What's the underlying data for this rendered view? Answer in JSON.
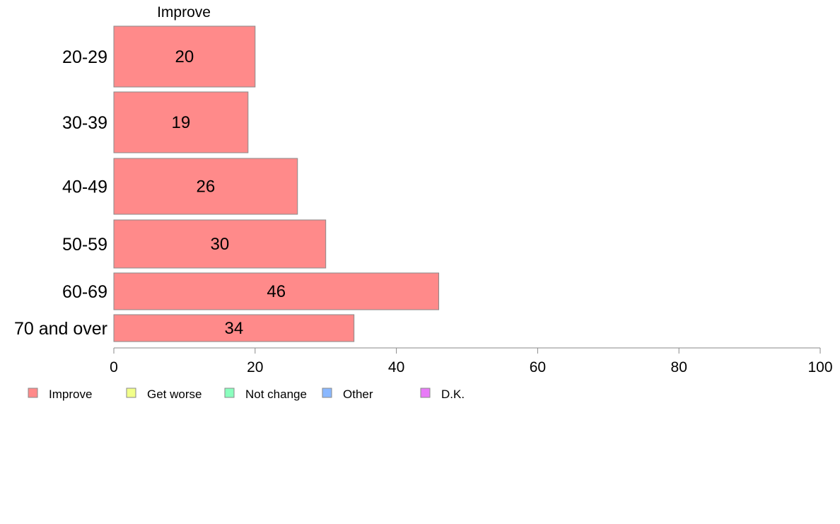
{
  "chart_data": {
    "type": "bar",
    "orientation": "horizontal",
    "title": "",
    "xlabel": "",
    "ylabel": "",
    "xlim": [
      0,
      100
    ],
    "x_ticks": [
      "0",
      "20",
      "40",
      "60",
      "80",
      "100"
    ],
    "categories": [
      "20-29",
      "30-39",
      "40-49",
      "50-59",
      "60-69",
      "70 and over"
    ],
    "series": [
      {
        "name": "Improve",
        "color": "#ff8a8a",
        "values": [
          20,
          19,
          26,
          30,
          46,
          34
        ],
        "labels": [
          "20",
          "19",
          "26",
          "30",
          "46",
          "34"
        ]
      }
    ],
    "column_header": "Improve",
    "grid": false,
    "legend": {
      "placement": "bottom-left",
      "entries": [
        {
          "label": "Improve",
          "color": "#ff8a8a"
        },
        {
          "label": "Get worse",
          "color": "#f2ff8a"
        },
        {
          "label": "Not change",
          "color": "#8affbe"
        },
        {
          "label": "Other",
          "color": "#8ab8ff"
        },
        {
          "label": "D.K.",
          "color": "#e87af7"
        }
      ]
    }
  }
}
